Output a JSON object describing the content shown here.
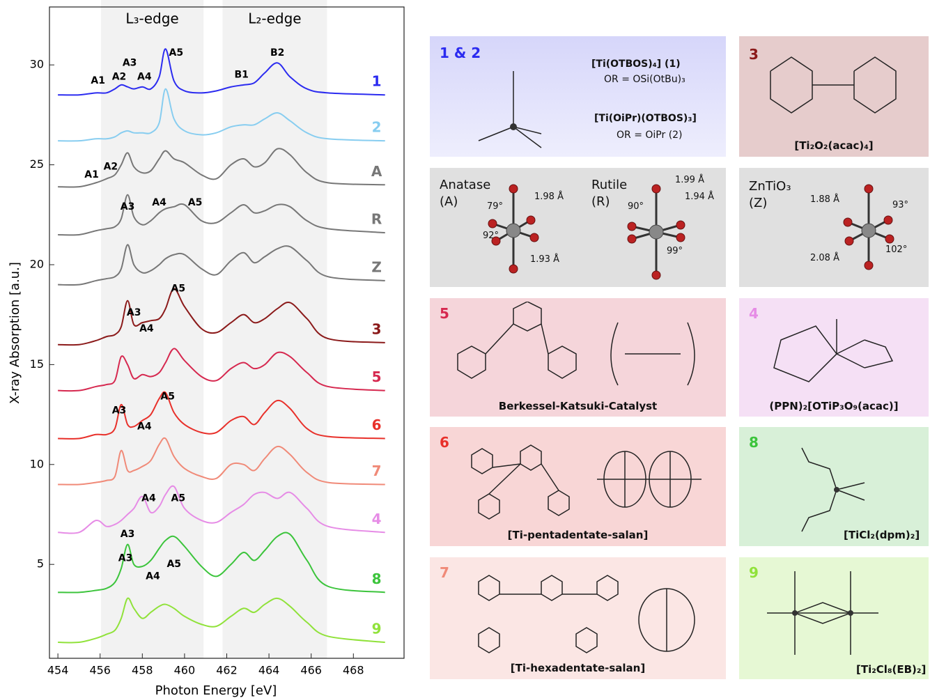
{
  "chart_data": {
    "type": "line",
    "xlabel": "Photon Energy [eV]",
    "ylabel": "X-ray Absorption [a.u.]",
    "xlim": [
      453.6,
      470.4
    ],
    "ylim": [
      0.3,
      32.9
    ],
    "xticks": [
      454,
      456,
      458,
      460,
      462,
      464,
      466,
      468
    ],
    "yticks": [
      5,
      10,
      15,
      20,
      25,
      30
    ],
    "regions": [
      {
        "name": "L₃-edge",
        "range": [
          456.04,
          460.9
        ]
      },
      {
        "name": "L₂-edge",
        "range": [
          461.8,
          466.75
        ]
      }
    ],
    "x": [
      454,
      455,
      455.8,
      456.3,
      456.7,
      457.0,
      457.3,
      457.6,
      458.0,
      458.4,
      458.8,
      459.1,
      459.5,
      460.0,
      460.8,
      461.5,
      462.2,
      462.8,
      463.3,
      463.8,
      464.4,
      465.0,
      465.8,
      466.8,
      469.5
    ],
    "series": [
      {
        "name": "1",
        "color": "#2b2bf0",
        "values": [
          28.5,
          28.5,
          28.6,
          28.6,
          28.8,
          29.0,
          28.9,
          28.8,
          28.9,
          28.8,
          29.4,
          30.8,
          29.2,
          28.7,
          28.6,
          28.7,
          28.9,
          29.0,
          29.1,
          29.6,
          30.1,
          29.4,
          28.8,
          28.6,
          28.5
        ]
      },
      {
        "name": "2",
        "color": "#87cdf0",
        "values": [
          26.2,
          26.2,
          26.3,
          26.3,
          26.4,
          26.6,
          26.7,
          26.6,
          26.6,
          26.6,
          27.1,
          28.8,
          27.3,
          26.7,
          26.5,
          26.6,
          26.9,
          27.0,
          27.0,
          27.3,
          27.6,
          27.2,
          26.6,
          26.3,
          26.2
        ]
      },
      {
        "name": "A",
        "color": "#777777",
        "values": [
          23.9,
          23.9,
          24.1,
          24.3,
          24.5,
          25.0,
          25.6,
          24.9,
          24.6,
          24.7,
          25.3,
          25.7,
          25.3,
          25.1,
          24.5,
          24.3,
          25.0,
          25.3,
          24.9,
          25.1,
          25.8,
          25.5,
          24.6,
          24.1,
          24.0
        ]
      },
      {
        "name": "R",
        "color": "#777777",
        "values": [
          21.5,
          21.5,
          21.7,
          21.8,
          21.9,
          22.3,
          23.5,
          22.4,
          22.0,
          22.2,
          22.6,
          22.8,
          22.9,
          23.0,
          22.2,
          22.1,
          22.6,
          23.0,
          22.6,
          22.7,
          23.0,
          22.9,
          22.2,
          21.8,
          21.6
        ]
      },
      {
        "name": "Z",
        "color": "#777777",
        "values": [
          19.0,
          19.0,
          19.2,
          19.3,
          19.4,
          19.8,
          21.0,
          20.0,
          19.6,
          19.7,
          20.0,
          20.3,
          20.5,
          20.5,
          19.8,
          19.5,
          20.2,
          20.6,
          20.1,
          20.4,
          20.8,
          20.9,
          20.2,
          19.4,
          19.2
        ]
      },
      {
        "name": "3",
        "color": "#8b1a1a",
        "values": [
          16.0,
          16.0,
          16.2,
          16.4,
          16.5,
          16.9,
          18.2,
          17.0,
          17.1,
          17.2,
          17.3,
          17.8,
          18.8,
          17.9,
          16.8,
          16.6,
          17.1,
          17.5,
          17.1,
          17.3,
          17.8,
          18.1,
          17.3,
          16.3,
          16.1
        ]
      },
      {
        "name": "5",
        "color": "#d6284f",
        "values": [
          13.7,
          13.7,
          13.9,
          14.0,
          14.2,
          15.4,
          15.0,
          14.3,
          14.5,
          14.4,
          14.6,
          15.1,
          15.8,
          15.2,
          14.4,
          14.2,
          14.8,
          15.1,
          14.8,
          15.0,
          15.6,
          15.4,
          14.6,
          13.9,
          13.7
        ]
      },
      {
        "name": "6",
        "color": "#e8302a",
        "values": [
          11.3,
          11.3,
          11.5,
          11.5,
          11.8,
          13.0,
          12.0,
          11.9,
          12.2,
          12.5,
          13.3,
          13.6,
          12.6,
          12.0,
          11.6,
          11.6,
          12.2,
          12.4,
          12.0,
          12.6,
          13.2,
          12.8,
          11.8,
          11.4,
          11.3
        ]
      },
      {
        "name": "7",
        "color": "#f08a78",
        "values": [
          9.0,
          9.0,
          9.1,
          9.2,
          9.4,
          10.7,
          9.7,
          9.7,
          9.9,
          10.2,
          11.0,
          11.3,
          10.4,
          9.8,
          9.4,
          9.3,
          10.0,
          10.0,
          9.7,
          10.3,
          10.9,
          10.5,
          9.6,
          9.1,
          9.0
        ]
      },
      {
        "name": "4",
        "color": "#e68ce6",
        "values": [
          6.6,
          6.6,
          7.2,
          6.9,
          7.0,
          7.2,
          7.5,
          7.8,
          8.4,
          7.6,
          7.9,
          8.5,
          8.9,
          7.8,
          7.2,
          7.1,
          7.6,
          8.0,
          8.5,
          8.6,
          8.3,
          8.6,
          7.8,
          6.9,
          6.6
        ]
      },
      {
        "name": "8",
        "color": "#3bc43b",
        "values": [
          3.6,
          3.6,
          3.7,
          3.8,
          4.1,
          4.8,
          6.0,
          5.0,
          4.9,
          5.2,
          5.8,
          6.2,
          6.4,
          5.9,
          4.9,
          4.4,
          5.0,
          5.6,
          5.2,
          5.7,
          6.4,
          6.5,
          5.2,
          3.9,
          3.6
        ]
      },
      {
        "name": "9",
        "color": "#90e23a",
        "values": [
          1.1,
          1.1,
          1.3,
          1.5,
          1.7,
          2.3,
          3.3,
          2.8,
          2.3,
          2.6,
          2.9,
          3.0,
          2.8,
          2.4,
          2.0,
          1.9,
          2.4,
          2.8,
          2.6,
          3.0,
          3.3,
          2.9,
          2.1,
          1.4,
          1.1
        ]
      }
    ],
    "annotations": [
      {
        "text": "A1",
        "x": 455.9,
        "y": 29.2
      },
      {
        "text": "A2",
        "x": 456.9,
        "y": 29.4
      },
      {
        "text": "A3",
        "x": 457.4,
        "y": 30.1
      },
      {
        "text": "A4",
        "x": 458.1,
        "y": 29.4
      },
      {
        "text": "A5",
        "x": 459.6,
        "y": 30.6
      },
      {
        "text": "B1",
        "x": 462.7,
        "y": 29.5
      },
      {
        "text": "B2",
        "x": 464.4,
        "y": 30.6
      },
      {
        "text": "A1",
        "x": 455.6,
        "y": 24.5
      },
      {
        "text": "A2",
        "x": 456.5,
        "y": 24.9
      },
      {
        "text": "A3",
        "x": 457.3,
        "y": 22.9
      },
      {
        "text": "A4",
        "x": 458.8,
        "y": 23.1
      },
      {
        "text": "A5",
        "x": 460.5,
        "y": 23.1
      },
      {
        "text": "A3",
        "x": 457.6,
        "y": 17.6
      },
      {
        "text": "A4",
        "x": 458.2,
        "y": 16.8
      },
      {
        "text": "A5",
        "x": 459.7,
        "y": 18.8
      },
      {
        "text": "A3",
        "x": 456.9,
        "y": 12.7
      },
      {
        "text": "A4",
        "x": 458.1,
        "y": 11.9
      },
      {
        "text": "A5",
        "x": 459.2,
        "y": 13.4
      },
      {
        "text": "A3",
        "x": 457.3,
        "y": 6.5
      },
      {
        "text": "A4",
        "x": 458.3,
        "y": 8.3
      },
      {
        "text": "A5",
        "x": 459.7,
        "y": 8.3
      },
      {
        "text": "A3",
        "x": 457.2,
        "y": 5.3
      },
      {
        "text": "A4",
        "x": 458.5,
        "y": 4.4
      },
      {
        "text": "A5",
        "x": 459.5,
        "y": 5.0
      }
    ]
  },
  "panels": {
    "p12": {
      "number": "1 & 2",
      "t1": "[Ti(OTBOS)₄] (1)",
      "t2": "OR = OSi(OtBu)₃",
      "t3": "[Ti(OiPr)(OTBOS)₃]",
      "t4": "OR = OiPr (2)"
    },
    "p3": {
      "number": "3",
      "caption": "[Ti₂O₂(acac)₄]"
    },
    "crystal": {
      "anatase": "Anatase",
      "a": "(A)",
      "a1": "1.98 Å",
      "a2": "79°",
      "a3": "92°",
      "a4": "1.93 Å",
      "rutile": "Rutile",
      "r": "(R)",
      "r1": "1.99 Å",
      "r2": "1.94 Å",
      "r3": "90°",
      "r4": "99°"
    },
    "zn": {
      "name": "ZnTiO₃",
      "z": "(Z)",
      "z1": "1.88 Å",
      "z2": "93°",
      "z3": "2.08 Å",
      "z4": "102°"
    },
    "p5": {
      "number": "5",
      "caption": "Berkessel-Katsuki-Catalyst"
    },
    "p4": {
      "number": "4",
      "caption": "(PPN)₂[OTiP₃O₉(acac)]"
    },
    "p6": {
      "number": "6",
      "caption": "[Ti-pentadentate-salan]"
    },
    "p8": {
      "number": "8",
      "caption": "[TiCl₂(dpm)₂]"
    },
    "p7": {
      "number": "7",
      "caption": "[Ti-hexadentate-salan]"
    },
    "p9": {
      "number": "9",
      "caption": "[Ti₂Cl₈(EB)₂]"
    }
  }
}
